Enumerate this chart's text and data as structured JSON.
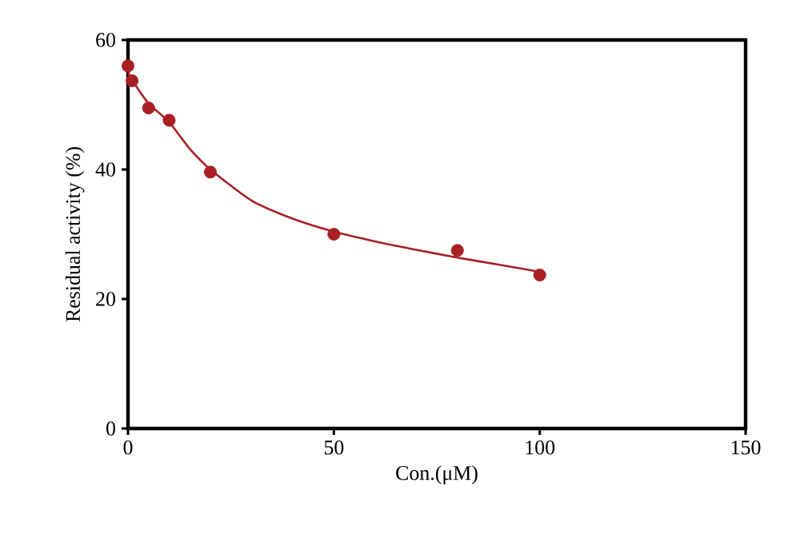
{
  "chart_data": {
    "type": "scatter",
    "xlabel": "Con.(μM)",
    "ylabel": "Residual activity (%)",
    "xlim": [
      0,
      150
    ],
    "xticks": [
      0,
      50,
      100,
      150
    ],
    "ylim": [
      0,
      60
    ],
    "yticks": [
      0,
      20,
      40,
      60
    ],
    "grid": false,
    "series": [
      {
        "color": "#a82024",
        "marker": "circle",
        "x": [
          0,
          1,
          5,
          10,
          20,
          50,
          80,
          100
        ],
        "values": [
          56.0,
          53.7,
          49.5,
          47.6,
          39.6,
          30.0,
          27.5,
          23.7
        ]
      },
      {
        "type": "line",
        "color": "#a82024",
        "marker": "none",
        "x": [
          0,
          1,
          5,
          10,
          15,
          20,
          30,
          40,
          50,
          60,
          70,
          80,
          90,
          100
        ],
        "values": [
          55,
          53.8,
          50.2,
          47.3,
          43.2,
          40.0,
          35.2,
          32.4,
          30.4,
          28.9,
          27.6,
          26.4,
          25.3,
          24.2
        ]
      }
    ]
  }
}
